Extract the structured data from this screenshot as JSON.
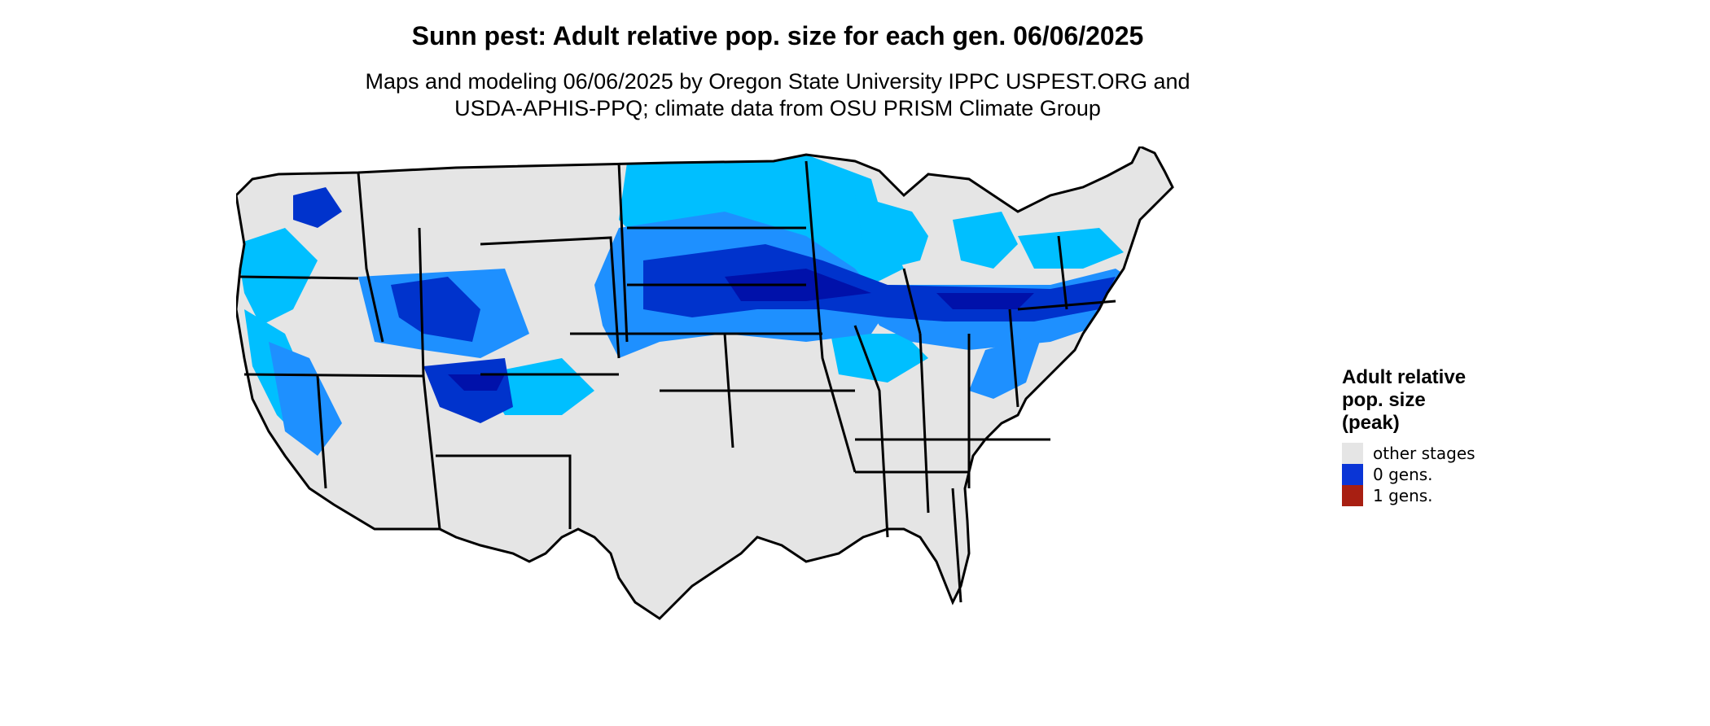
{
  "header": {
    "title": "Sunn pest: Adult relative pop. size for each gen. 06/06/2025",
    "subtitle_line1": "Maps and modeling 06/06/2025 by Oregon State University IPPC USPEST.ORG and",
    "subtitle_line2": "USDA-APHIS-PPQ; climate data from OSU PRISM Climate Group"
  },
  "legend": {
    "title_line1": "Adult relative",
    "title_line2": "pop. size",
    "title_line3": "(peak)",
    "items": [
      {
        "label": "other stages",
        "color": "#e5e5e5"
      },
      {
        "label": "0 gens.",
        "color": "#0a35d6"
      },
      {
        "label": "1 gens.",
        "color": "#a81f12"
      }
    ]
  },
  "map_colors": {
    "background": "#e5e5e5",
    "light_blue": "#00bfff",
    "mid_blue": "#1e90ff",
    "dark_blue": "#0033cc",
    "deep_blue": "#0011aa",
    "border": "#000000"
  }
}
